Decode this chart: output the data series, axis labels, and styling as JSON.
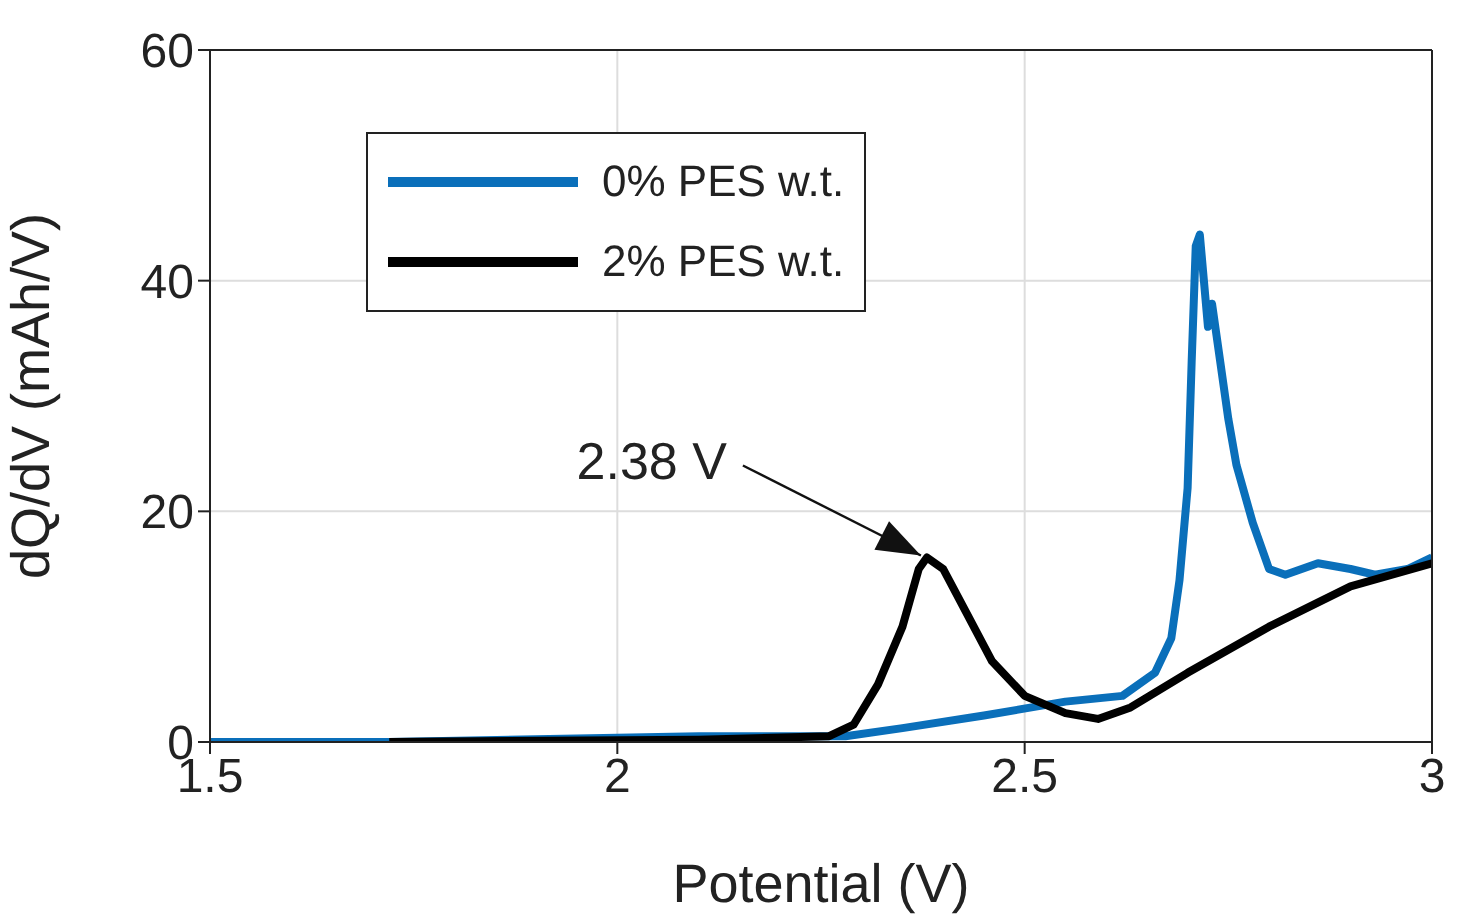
{
  "chart_data": {
    "type": "line",
    "xlabel": "Potential (V)",
    "ylabel": "dQ/dV (mAh/V)",
    "xlim": [
      1.5,
      3
    ],
    "xticks": [
      1.5,
      2,
      2.5,
      3
    ],
    "ylim": [
      0,
      60
    ],
    "yticks": [
      0,
      20,
      40,
      60
    ],
    "grid": true,
    "legend": "top left",
    "line_style": "solid",
    "marker": "none",
    "series": [
      {
        "name": "0% PES w.t.",
        "color": "#0a6fba",
        "x": [
          1.5,
          1.72,
          2.1,
          2.28,
          2.35,
          2.45,
          2.55,
          2.62,
          2.66,
          2.68,
          2.69,
          2.7,
          2.705,
          2.71,
          2.715,
          2.72,
          2.725,
          2.73,
          2.74,
          2.75,
          2.76,
          2.78,
          2.8,
          2.82,
          2.86,
          2.9,
          2.93,
          2.97,
          3.0
        ],
        "values": [
          0,
          0,
          0.5,
          0.5,
          1.2,
          2.3,
          3.5,
          4,
          6,
          9,
          14,
          22,
          33,
          43,
          44,
          40,
          36,
          38,
          33,
          28,
          24,
          19,
          15,
          14.5,
          15.5,
          15,
          14.5,
          15,
          16
        ]
      },
      {
        "name": "2% PES w.t.",
        "color": "#000000",
        "x": [
          1.72,
          2.1,
          2.26,
          2.29,
          2.32,
          2.35,
          2.37,
          2.38,
          2.4,
          2.43,
          2.46,
          2.5,
          2.55,
          2.59,
          2.63,
          2.7,
          2.8,
          2.9,
          3.0
        ],
        "values": [
          0,
          0.2,
          0.5,
          1.5,
          5,
          10,
          15,
          16,
          15,
          11,
          7,
          4,
          2.5,
          2,
          3,
          6,
          10,
          13.5,
          15.5
        ]
      }
    ],
    "annotations": [
      {
        "text": "2.38 V",
        "x": 2.38,
        "y": 16
      }
    ]
  }
}
